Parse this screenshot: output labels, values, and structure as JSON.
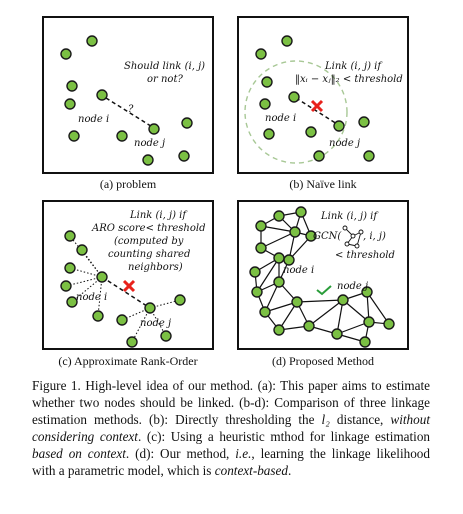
{
  "panels": {
    "a": {
      "caption": "(a) problem",
      "question_line1": "Should link (i, j)",
      "question_line2": "or not?",
      "question_mark": "?",
      "node_i": "node i",
      "node_j": "node j"
    },
    "b": {
      "caption": "(b) Naïve link",
      "cond_line1": "Link (i, j) if",
      "cond_line2": "‖xᵢ − xⱼ‖₂ < threshold",
      "node_i": "node i",
      "node_j": "node j"
    },
    "c": {
      "caption": "(c) Approximate Rank-Order",
      "cond_line1": "Link (i, j) if",
      "cond_line2": "ARO score< threshold",
      "cond_line3": "(computed by",
      "cond_line4": "counting shared",
      "cond_line5": "neighbors)",
      "node_i": "node i",
      "node_j": "node j"
    },
    "d": {
      "caption": "(d) Proposed Method",
      "cond_line1": "Link (i, j) if",
      "cond_line2a": "GCN(",
      "cond_line2b": ", i, j)",
      "cond_line3": "< threshold",
      "node_i": "node i",
      "node_j": "node j"
    }
  },
  "figure_caption": {
    "label": "Figure 1.",
    "seg1": " High-level idea of our method. (a): This paper aims to estimate whether two nodes should be linked. (b-d): Comparison of three linkage estimation methods. (b): Directly thresholding the ",
    "l2": "l₂",
    "seg2": " distance, ",
    "em1": "without considering context",
    "seg3": ". (c): Using a heuristic mthod for linkage estimation ",
    "em2": "based on context",
    "seg4": ". (d): Our method, ",
    "em3": "i.e.",
    "seg5": ", learning the linkage likelihood with a parametric model, which is ",
    "em4": "context-based",
    "seg6": "."
  },
  "colors": {
    "node_fill": "#7bc043",
    "cross": "#e8221c",
    "dashed_circle": "#a8c896",
    "check": "#2a9d3a"
  }
}
